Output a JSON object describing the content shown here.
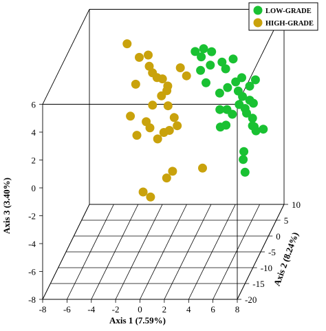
{
  "chart_data": {
    "type": "scatter",
    "title": "",
    "xlabel": "Axis 1 (7.59%)",
    "ylabel": "Axis 2 (8.24%)",
    "zlabel": "Axis 3 (3.40%)",
    "xlim": [
      -8,
      8
    ],
    "ylim": [
      -20,
      10
    ],
    "zlim": [
      -8,
      6
    ],
    "x_ticks": [
      "-8",
      "-6",
      "-4",
      "-2",
      "0",
      "2",
      "4",
      "6",
      "8"
    ],
    "y_ticks": [
      "-20",
      "-15",
      "-10",
      "-5",
      "0",
      "5",
      "10"
    ],
    "z_ticks": [
      "-8",
      "-6",
      "-4",
      "-2",
      "0",
      "2",
      "4",
      "6"
    ],
    "grid": true,
    "legend_position": "top-right",
    "colors": {
      "low_grade": "#19c132",
      "high_grade": "#c9a20c"
    },
    "series": [
      {
        "name": "LOW-GRADE",
        "color": "#19c132",
        "points": [
          [
            1.5,
            3.7,
            4.4
          ],
          [
            2.2,
            3.7,
            4.6
          ],
          [
            2.8,
            4.1,
            4.3
          ],
          [
            2.1,
            2.9,
            4.2
          ],
          [
            2.9,
            2.5,
            3.7
          ],
          [
            3.8,
            3.0,
            3.8
          ],
          [
            4.2,
            2.2,
            3.5
          ],
          [
            2.2,
            1.7,
            3.5
          ],
          [
            2.7,
            1.3,
            2.7
          ],
          [
            3.9,
            0.7,
            2.1
          ],
          [
            4.5,
            1.1,
            2.4
          ],
          [
            5.1,
            1.6,
            2.7
          ],
          [
            5.4,
            0.9,
            2.2
          ],
          [
            5.8,
            0.5,
            1.9
          ],
          [
            6.1,
            -0.2,
            1.2
          ],
          [
            6.3,
            -0.8,
            1.0
          ],
          [
            4.6,
            -0.1,
            1.1
          ],
          [
            5.8,
            -1.6,
            1.8
          ],
          [
            6.6,
            -1.1,
            2.0
          ],
          [
            6.8,
            -0.3,
            1.6
          ],
          [
            4.3,
            -2.3,
            1.6
          ],
          [
            5.4,
            -2.9,
            1.4
          ],
          [
            4.6,
            -4.3,
            0.8
          ],
          [
            5.1,
            -4.6,
            1.0
          ],
          [
            7.0,
            -2.4,
            1.0
          ],
          [
            7.2,
            -2.9,
            0.5
          ],
          [
            7.4,
            -3.3,
            0.3
          ],
          [
            8.1,
            -4.1,
            0.6
          ],
          [
            5.6,
            1.6,
            3.0
          ],
          [
            4.7,
            3.1,
            4.0
          ],
          [
            6.2,
            2.0,
            2.3
          ],
          [
            6.7,
            1.8,
            2.8
          ],
          [
            7.3,
            -4.8,
            1.0
          ],
          [
            6.9,
            -7.2,
            -0.3
          ],
          [
            7.0,
            -8.4,
            -0.6
          ],
          [
            7.5,
            -11.1,
            -0.9
          ]
        ]
      },
      {
        "name": "HIGH-GRADE",
        "color": "#c9a20c",
        "points": [
          [
            -3.9,
            2.2,
            5.3
          ],
          [
            -2.1,
            1.7,
            4.6
          ],
          [
            -2.8,
            1.4,
            4.5
          ],
          [
            -1.9,
            0.8,
            4.0
          ],
          [
            -1.6,
            0.5,
            3.6
          ],
          [
            -1.2,
            0.3,
            3.3
          ],
          [
            -0.7,
            -0.1,
            3.3
          ],
          [
            -0.2,
            -0.6,
            2.9
          ],
          [
            -0.2,
            -1.2,
            2.7
          ],
          [
            0.6,
            1.2,
            3.8
          ],
          [
            1.1,
            1.3,
            3.2
          ],
          [
            -2.8,
            -0.9,
            3.1
          ],
          [
            -0.6,
            -1.5,
            2.4
          ],
          [
            -1.3,
            -1.8,
            1.8
          ],
          [
            0.0,
            -2.0,
            1.8
          ],
          [
            -2.9,
            -3.5,
            1.4
          ],
          [
            -1.6,
            -3.5,
            1.0
          ],
          [
            0.0,
            -4.7,
            0.5
          ],
          [
            0.7,
            -3.5,
            1.3
          ],
          [
            1.0,
            -3.9,
            0.8
          ],
          [
            -2.1,
            -5.6,
            0.5
          ],
          [
            -1.1,
            -5.0,
            0.9
          ],
          [
            -0.3,
            -6.3,
            0.4
          ],
          [
            0.6,
            -5.8,
            0.9
          ],
          [
            1.0,
            -10.7,
            -1.4
          ],
          [
            -0.7,
            -12.5,
            -2.0
          ],
          [
            0.0,
            -13.2,
            -2.2
          ],
          [
            1.5,
            -10.8,
            -0.9
          ],
          [
            4.4,
            -14.2,
            0.1
          ]
        ]
      }
    ]
  }
}
